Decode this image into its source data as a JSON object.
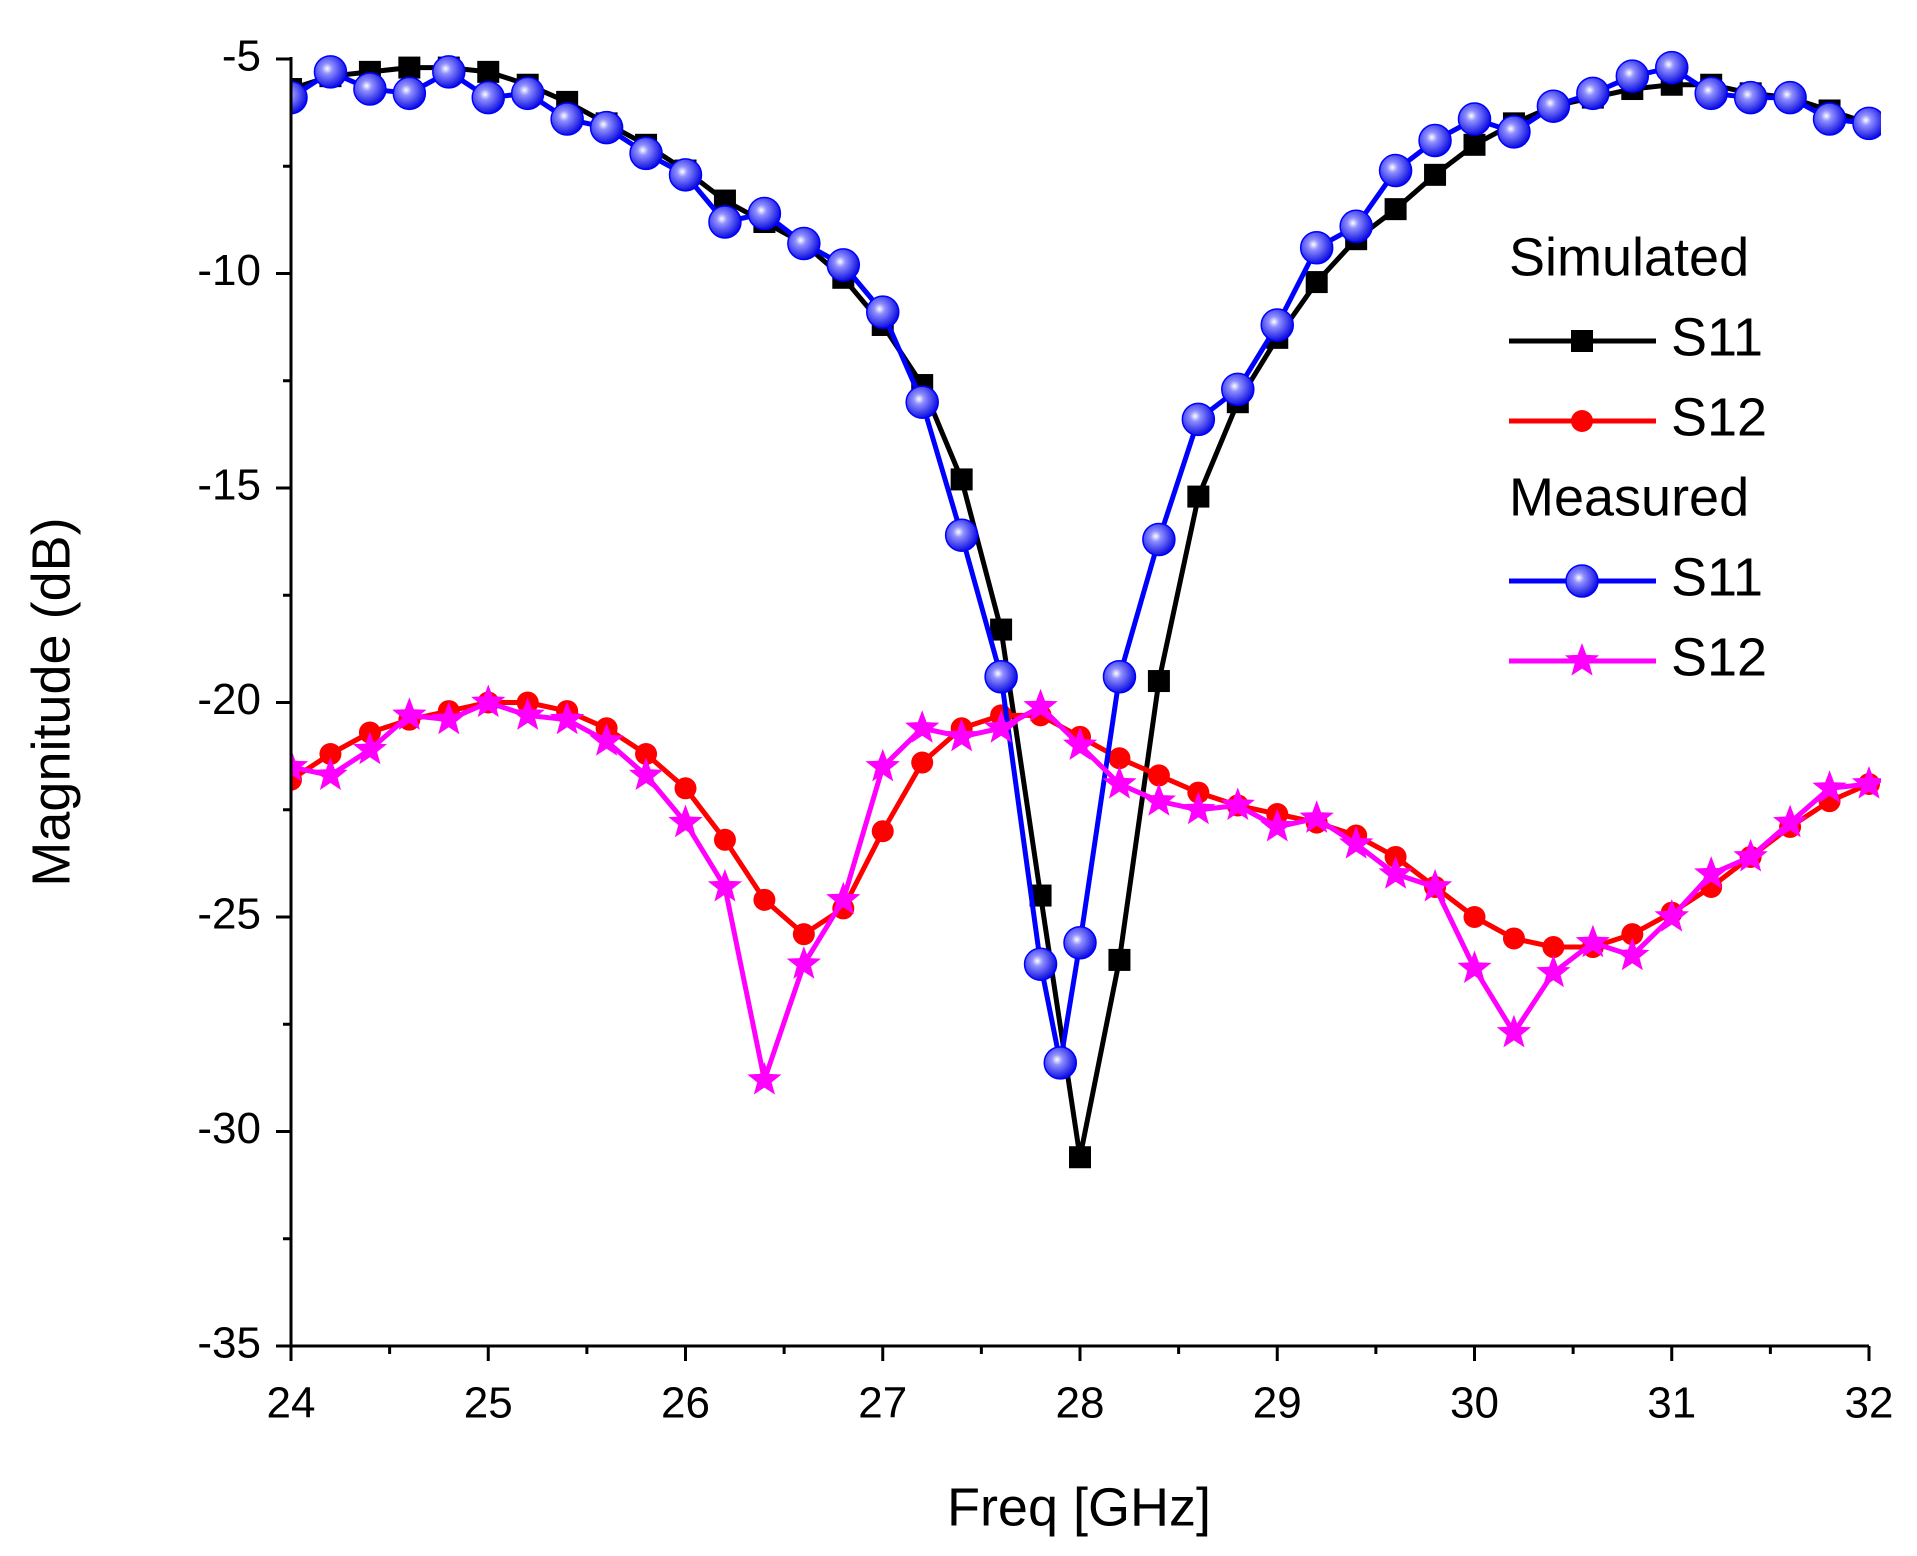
{
  "chart_data": {
    "type": "line",
    "xlabel": "Freq [GHz]",
    "ylabel": "Magnitude (dB)",
    "xlim": [
      24,
      32
    ],
    "xticks": [
      24,
      25,
      26,
      27,
      28,
      29,
      30,
      31,
      32
    ],
    "xminorticks": [
      24.5,
      25.5,
      26.5,
      27.5,
      28.5,
      29.5,
      30.5,
      31.5
    ],
    "ylim": [
      -35,
      -5
    ],
    "yticks": [
      -35,
      -30,
      -25,
      -20,
      -15,
      -10,
      -5
    ],
    "yminorticks": [
      -32.5,
      -27.5,
      -22.5,
      -17.5,
      -12.5,
      -7.5
    ],
    "groups": [
      {
        "title": "Simulated",
        "series": [
          {
            "name": "S11",
            "color": "#000000",
            "marker": "square",
            "x": [
              24,
              24.2,
              24.4,
              24.6,
              24.8,
              25,
              25.2,
              25.4,
              25.6,
              25.8,
              26,
              26.2,
              26.4,
              26.6,
              26.8,
              27,
              27.2,
              27.4,
              27.6,
              27.8,
              28,
              28.2,
              28.4,
              28.6,
              28.8,
              29,
              29.2,
              29.4,
              29.6,
              29.8,
              30,
              30.2,
              30.4,
              30.6,
              30.8,
              31,
              31.2,
              31.4,
              31.6,
              31.8,
              32
            ],
            "values": [
              -5.7,
              -5.4,
              -5.3,
              -5.2,
              -5.2,
              -5.3,
              -5.6,
              -6.0,
              -6.5,
              -7.0,
              -7.6,
              -8.3,
              -8.8,
              -9.3,
              -10.1,
              -11.2,
              -12.6,
              -14.8,
              -18.3,
              -24.5,
              -30.6,
              -26.0,
              -19.5,
              -15.2,
              -13.0,
              -11.5,
              -10.2,
              -9.2,
              -8.5,
              -7.7,
              -7.0,
              -6.5,
              -6.1,
              -5.9,
              -5.7,
              -5.6,
              -5.6,
              -5.8,
              -5.9,
              -6.2,
              -6.5
            ]
          },
          {
            "name": "S12",
            "color": "#ff0000",
            "marker": "circle",
            "x": [
              24,
              24.2,
              24.4,
              24.6,
              24.8,
              25,
              25.2,
              25.4,
              25.6,
              25.8,
              26,
              26.2,
              26.4,
              26.6,
              26.8,
              27,
              27.2,
              27.4,
              27.6,
              27.8,
              28,
              28.2,
              28.4,
              28.6,
              28.8,
              29,
              29.2,
              29.4,
              29.6,
              29.8,
              30,
              30.2,
              30.4,
              30.6,
              30.8,
              31,
              31.2,
              31.4,
              31.6,
              31.8,
              32
            ],
            "values": [
              -21.8,
              -21.2,
              -20.7,
              -20.4,
              -20.2,
              -20.0,
              -20.0,
              -20.2,
              -20.6,
              -21.2,
              -22.0,
              -23.2,
              -24.6,
              -25.4,
              -24.8,
              -23.0,
              -21.4,
              -20.6,
              -20.3,
              -20.3,
              -20.8,
              -21.3,
              -21.7,
              -22.1,
              -22.4,
              -22.6,
              -22.8,
              -23.1,
              -23.6,
              -24.3,
              -25.0,
              -25.5,
              -25.7,
              -25.7,
              -25.4,
              -24.9,
              -24.3,
              -23.6,
              -22.9,
              -22.3,
              -21.9
            ]
          }
        ]
      },
      {
        "title": "Measured",
        "series": [
          {
            "name": "S11",
            "color": "#0000ff",
            "marker": "sphere",
            "x": [
              24,
              24.2,
              24.4,
              24.6,
              24.8,
              25,
              25.2,
              25.4,
              25.6,
              25.8,
              26,
              26.2,
              26.4,
              26.6,
              26.8,
              27,
              27.2,
              27.4,
              27.6,
              27.8,
              27.9,
              28,
              28.2,
              28.4,
              28.6,
              28.8,
              29,
              29.2,
              29.4,
              29.6,
              29.8,
              30,
              30.2,
              30.4,
              30.6,
              30.8,
              31,
              31.2,
              31.4,
              31.6,
              31.8,
              32
            ],
            "values": [
              -5.9,
              -5.3,
              -5.7,
              -5.8,
              -5.3,
              -5.9,
              -5.8,
              -6.4,
              -6.6,
              -7.2,
              -7.7,
              -8.8,
              -8.6,
              -9.3,
              -9.8,
              -10.9,
              -13.0,
              -16.1,
              -19.4,
              -26.1,
              -28.4,
              -25.6,
              -19.4,
              -16.2,
              -13.4,
              -12.7,
              -11.2,
              -9.4,
              -8.9,
              -7.6,
              -6.9,
              -6.4,
              -6.7,
              -6.1,
              -5.8,
              -5.4,
              -5.2,
              -5.8,
              -5.9,
              -5.9,
              -6.4,
              -6.5
            ]
          },
          {
            "name": "S12",
            "color": "#ff00ff",
            "marker": "star",
            "x": [
              24,
              24.2,
              24.4,
              24.6,
              24.8,
              25,
              25.2,
              25.4,
              25.6,
              25.8,
              26,
              26.2,
              26.4,
              26.6,
              26.8,
              27,
              27.2,
              27.4,
              27.6,
              27.8,
              28,
              28.2,
              28.4,
              28.6,
              28.8,
              29,
              29.2,
              29.4,
              29.6,
              29.8,
              30,
              30.2,
              30.4,
              30.6,
              30.8,
              31,
              31.2,
              31.4,
              31.6,
              31.8,
              32
            ],
            "values": [
              -21.5,
              -21.7,
              -21.1,
              -20.3,
              -20.4,
              -20.0,
              -20.3,
              -20.4,
              -20.9,
              -21.7,
              -22.8,
              -24.3,
              -28.8,
              -26.1,
              -24.6,
              -21.5,
              -20.6,
              -20.8,
              -20.6,
              -20.1,
              -21.0,
              -21.9,
              -22.3,
              -22.5,
              -22.4,
              -22.9,
              -22.7,
              -23.3,
              -24.0,
              -24.3,
              -26.2,
              -27.7,
              -26.3,
              -25.6,
              -25.9,
              -25.0,
              -24.0,
              -23.6,
              -22.8,
              -22.0,
              -21.9
            ]
          }
        ]
      }
    ]
  }
}
